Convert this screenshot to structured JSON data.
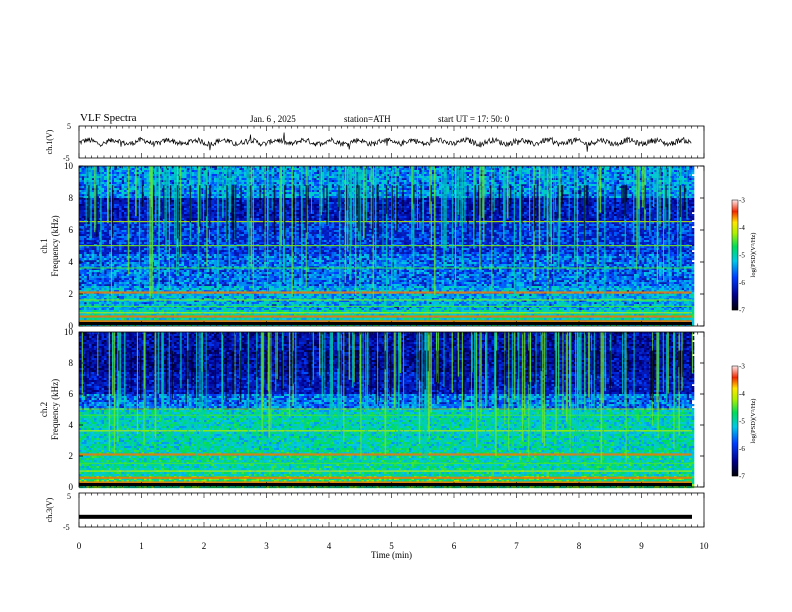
{
  "header": {
    "title": "VLF  Spectra",
    "date": "Jan. 6  , 2025",
    "station": "station=ATH",
    "start_ut": "start  UT  =    17: 50: 0"
  },
  "chart_data": [
    {
      "type": "line",
      "panel": "ch1-waveform",
      "ylabel": "ch.1(V)",
      "ylim": [
        -5,
        5
      ],
      "yticks": [
        "5",
        "-5"
      ],
      "xlim": [
        0,
        10
      ],
      "series": [
        {
          "color": "#000000",
          "mean": 0,
          "amplitude_approx": 1.2
        }
      ]
    },
    {
      "type": "heatmap",
      "panel": "ch1-spectrogram",
      "ylabel": "ch.1\nFrequency (kHz)",
      "ylim": [
        0,
        10
      ],
      "yticks": [
        "0",
        "2",
        "4",
        "6",
        "8",
        "10"
      ],
      "xlim": [
        0,
        9.8
      ],
      "colorbar": {
        "label": "log(PSD)(V²/Hz)",
        "range": [
          -7,
          -3
        ],
        "ticks": [
          "-3",
          "-4",
          "-5",
          "-6",
          "-7"
        ]
      },
      "bands_khz": [
        0.3,
        0.6,
        0.8,
        1.2,
        1.6,
        2.1,
        3.6,
        5.0,
        6.5
      ]
    },
    {
      "type": "heatmap",
      "panel": "ch2-spectrogram",
      "ylabel": "ch.2\nFrequency (kHz)",
      "ylim": [
        0,
        10
      ],
      "yticks": [
        "0",
        "2",
        "4",
        "6",
        "8",
        "10"
      ],
      "xlim": [
        0,
        9.8
      ],
      "colorbar": {
        "label": "log(PSD)(V²/Hz)",
        "range": [
          -7,
          -3
        ],
        "ticks": [
          "-3",
          "-4",
          "-5",
          "-6",
          "-7"
        ]
      },
      "bands_khz": [
        0.3,
        0.6,
        1.0,
        1.5,
        2.1,
        3.6,
        4.6,
        5.0
      ]
    },
    {
      "type": "line",
      "panel": "ch3-waveform",
      "ylabel": "ch.3(V)",
      "ylim": [
        -5,
        5
      ],
      "yticks": [
        "5",
        "-5"
      ],
      "xlim": [
        0,
        10
      ],
      "series": [
        {
          "color": "#000000",
          "mean": -2,
          "amplitude_approx": 0.2
        }
      ]
    }
  ],
  "x_axis": {
    "label": "Time  (min)",
    "ticks": [
      "0",
      "1",
      "2",
      "3",
      "4",
      "5",
      "6",
      "7",
      "8",
      "9",
      "10"
    ]
  }
}
